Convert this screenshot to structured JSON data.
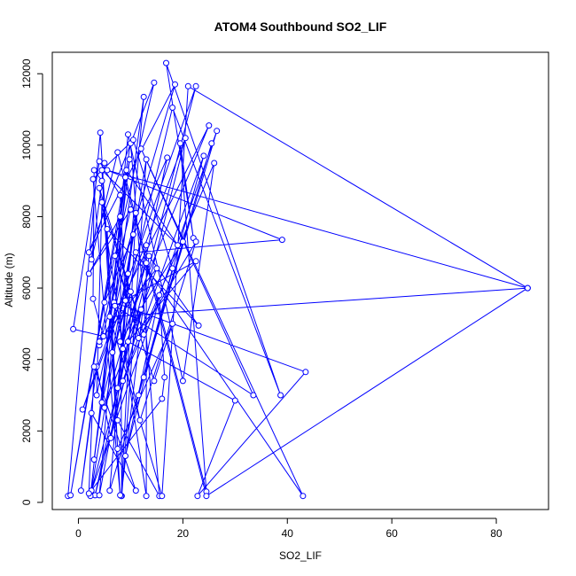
{
  "chart_data": {
    "type": "line",
    "title": "ATOM4 Southbound SO2_LIF",
    "xlabel": "SO2_LIF",
    "ylabel": "Altitude (m)",
    "xlim": [
      -5,
      90
    ],
    "ylim": [
      -200,
      12600
    ],
    "x_ticks": [
      0,
      20,
      40,
      60,
      80
    ],
    "y_ticks": [
      0,
      2000,
      4000,
      6000,
      8000,
      10000,
      12000
    ],
    "x_tick_labels": [
      "0",
      "20",
      "40",
      "60",
      "80"
    ],
    "y_tick_labels": [
      "0",
      "2000",
      "4000",
      "6000",
      "8000",
      "10000",
      "12000"
    ],
    "grid": false,
    "series_color": "#0000ff",
    "marker": "open-circle",
    "series": [
      {
        "name": "",
        "points": [
          [
            -2.0,
            180
          ],
          [
            4.2,
            10350
          ],
          [
            7.5,
            2300
          ],
          [
            15.5,
            180
          ],
          [
            10.0,
            10050
          ],
          [
            -1.5,
            200
          ],
          [
            9.8,
            9600
          ],
          [
            3.0,
            1200
          ],
          [
            12.5,
            11350
          ],
          [
            6.0,
            330
          ],
          [
            20.0,
            7300
          ],
          [
            8.0,
            4500
          ],
          [
            25.0,
            10550
          ],
          [
            4.0,
            4400
          ],
          [
            18.5,
            11700
          ],
          [
            2.0,
            7000
          ],
          [
            14.5,
            11750
          ],
          [
            5.0,
            5600
          ],
          [
            17.0,
            9650
          ],
          [
            3.2,
            200
          ],
          [
            20.5,
            10200
          ],
          [
            0.8,
            2600
          ],
          [
            22.5,
            11650
          ],
          [
            2.5,
            330
          ],
          [
            26.5,
            10400
          ],
          [
            12.5,
            3500
          ],
          [
            25.5,
            10050
          ],
          [
            11.5,
            3000
          ],
          [
            24.0,
            9700
          ],
          [
            8.5,
            3400
          ],
          [
            26.0,
            9500
          ],
          [
            20.0,
            3400
          ],
          [
            9.5,
            10300
          ],
          [
            4.5,
            2800
          ],
          [
            18.0,
            11050
          ],
          [
            38.7,
            3000
          ],
          [
            16.8,
            12300
          ],
          [
            22.0,
            7400
          ],
          [
            19.5,
            10050
          ],
          [
            24.5,
            300
          ],
          [
            9.0,
            9100
          ],
          [
            2.3,
            180
          ],
          [
            13.0,
            9600
          ],
          [
            8.3,
            180
          ],
          [
            8.0,
            8000
          ],
          [
            2.0,
            6400
          ],
          [
            10.0,
            8200
          ],
          [
            4.0,
            4500
          ],
          [
            15.0,
            6550
          ],
          [
            5.0,
            2650
          ],
          [
            13.0,
            6700
          ],
          [
            13.0,
            180
          ],
          [
            4.0,
            8800
          ],
          [
            12.5,
            4700
          ],
          [
            4.5,
            8400
          ],
          [
            3.5,
            3000
          ],
          [
            11.0,
            8100
          ],
          [
            8.2,
            180
          ],
          [
            13.5,
            6900
          ],
          [
            23.0,
            4950
          ],
          [
            5.5,
            7650
          ],
          [
            7.5,
            1500
          ],
          [
            18.0,
            5000
          ],
          [
            14.5,
            3400
          ],
          [
            7.0,
            6900
          ],
          [
            11.5,
            4600
          ],
          [
            22.5,
            7300
          ],
          [
            11.8,
            2300
          ],
          [
            6.8,
            5600
          ],
          [
            43.5,
            3650
          ],
          [
            22.8,
            180
          ],
          [
            30.0,
            2850
          ],
          [
            9.5,
            4500
          ],
          [
            22.5,
            6750
          ],
          [
            7.0,
            5500
          ],
          [
            33.5,
            3000
          ],
          [
            12.0,
            9900
          ],
          [
            43.0,
            180
          ],
          [
            11.0,
            7000
          ],
          [
            39.0,
            7350
          ],
          [
            5.5,
            9300
          ],
          [
            86.0,
            6000
          ],
          [
            21.0,
            11650
          ],
          [
            16.0,
            180
          ],
          [
            6.0,
            5200
          ],
          [
            86.0,
            6000
          ],
          [
            24.5,
            180
          ],
          [
            7.5,
            9800
          ],
          [
            2.5,
            6800
          ],
          [
            5.0,
            9500
          ],
          [
            4.5,
            9000
          ],
          [
            3.0,
            9300
          ],
          [
            2.8,
            5700
          ],
          [
            4.8,
            4650
          ],
          [
            -1.0,
            4850
          ],
          [
            4.0,
            9550
          ],
          [
            8.0,
            8600
          ],
          [
            9.0,
            5650
          ],
          [
            10.5,
            7500
          ],
          [
            6.5,
            4200
          ],
          [
            10.0,
            5900
          ],
          [
            7.5,
            3200
          ],
          [
            9.5,
            6400
          ],
          [
            8.5,
            4300
          ],
          [
            12.0,
            5400
          ],
          [
            6.2,
            1800
          ],
          [
            3.5,
            3800
          ],
          [
            0.5,
            330
          ],
          [
            2.5,
            2500
          ],
          [
            11.0,
            330
          ],
          [
            3.0,
            3800
          ],
          [
            2.0,
            250
          ],
          [
            16.0,
            2900
          ],
          [
            16.5,
            3500
          ],
          [
            15.5,
            5800
          ],
          [
            9.0,
            1300
          ],
          [
            18.0,
            6550
          ],
          [
            10.5,
            10150
          ],
          [
            2.8,
            9050
          ],
          [
            8.0,
            200
          ],
          [
            4.5,
            9300
          ],
          [
            19.0,
            7200
          ],
          [
            9.2,
            9300
          ],
          [
            4.0,
            200
          ],
          [
            13.0,
            7200
          ]
        ]
      }
    ]
  }
}
